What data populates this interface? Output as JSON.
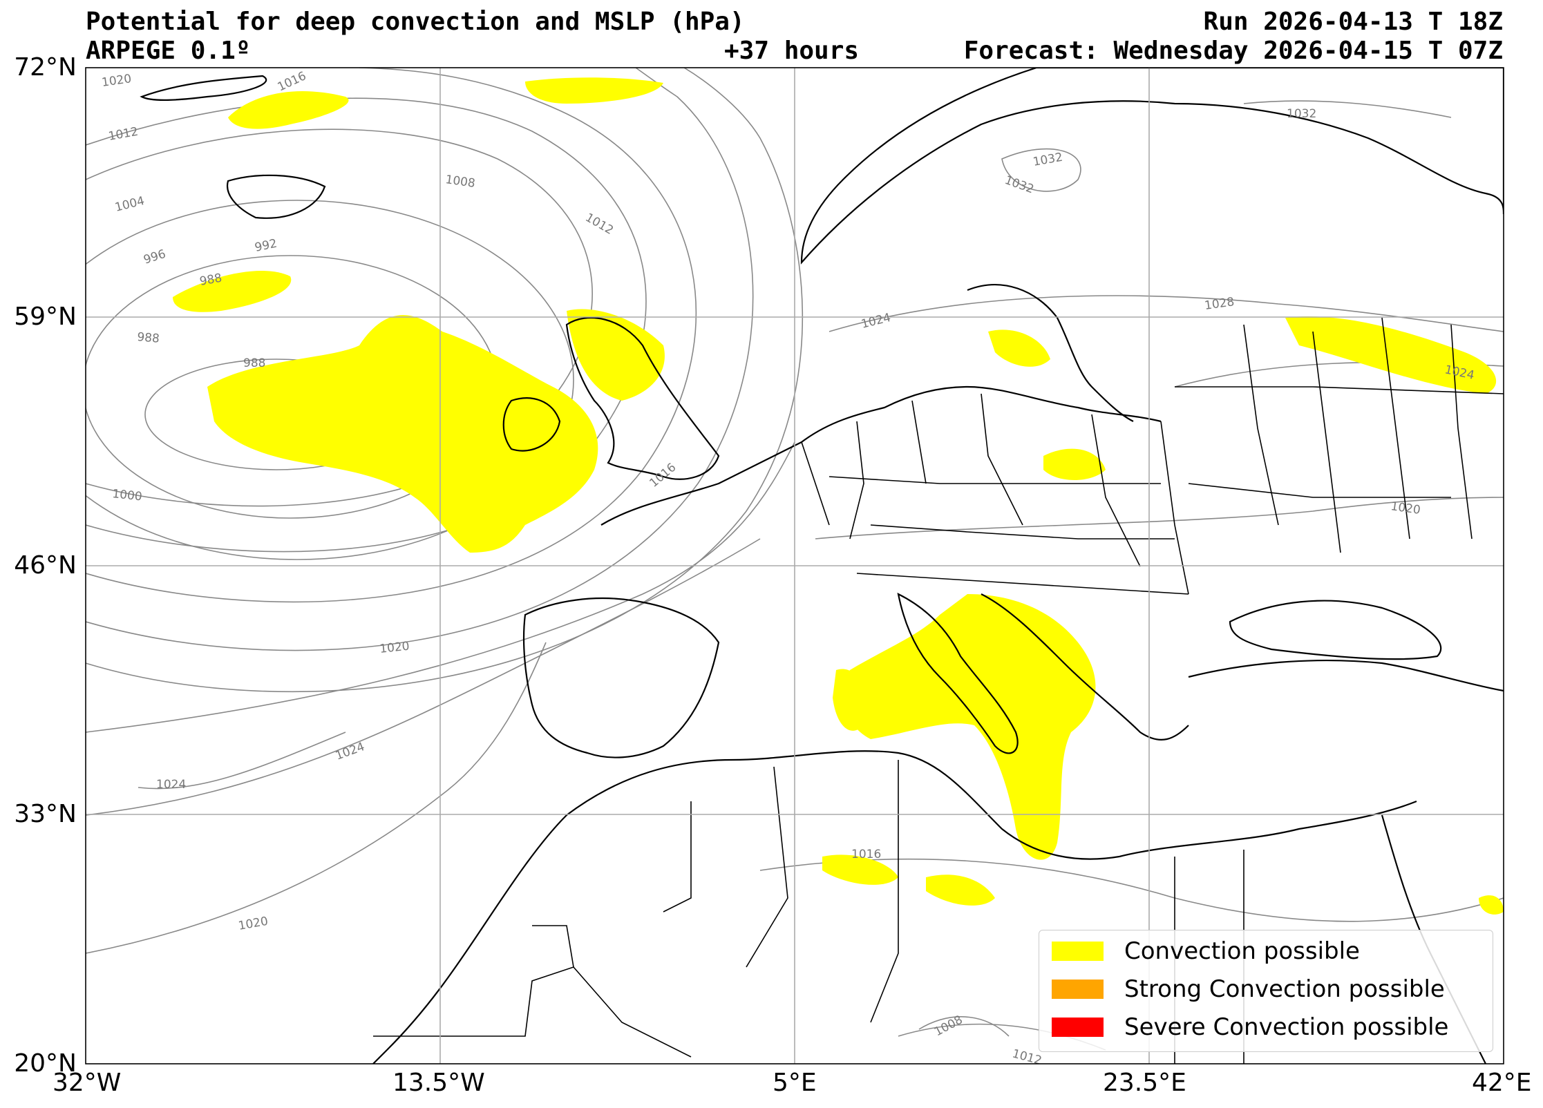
{
  "header": {
    "title_left": "Potential for deep convection and MSLP (hPa)",
    "model": "ARPEGE 0.1º",
    "run": "Run 2026-04-13 T 18Z",
    "lead": "+37 hours",
    "forecast": "Forecast: Wednesday 2026-04-15 T 07Z"
  },
  "axes": {
    "lat_ticks": [
      "72°N",
      "59°N",
      "46°N",
      "33°N",
      "20°N"
    ],
    "lon_ticks": [
      "32°W",
      "13.5°W",
      "5°E",
      "23.5°E",
      "42°E"
    ],
    "lat_range": [
      20,
      72
    ],
    "lon_range": [
      -32,
      42
    ],
    "grid": true
  },
  "isobar_labels": [
    "1020",
    "1016",
    "1012",
    "1004",
    "1008",
    "1012",
    "996",
    "992",
    "988",
    "988",
    "988",
    "1000",
    "1020",
    "1024",
    "1024",
    "1020",
    "1032",
    "1032",
    "1032",
    "1024",
    "1028",
    "1024",
    "1020",
    "1016",
    "1016",
    "1008",
    "1012"
  ],
  "legend": {
    "items": [
      {
        "label": "Convection possible",
        "color": "#ffff00"
      },
      {
        "label": "Strong Convection possible",
        "color": "#ffa500"
      },
      {
        "label": "Severe Convection possible",
        "color": "#ff0000"
      }
    ]
  },
  "colors": {
    "coast": "#000000",
    "isobar": "#888888",
    "grid": "#aaaaaa",
    "convection": "#ffff00"
  }
}
